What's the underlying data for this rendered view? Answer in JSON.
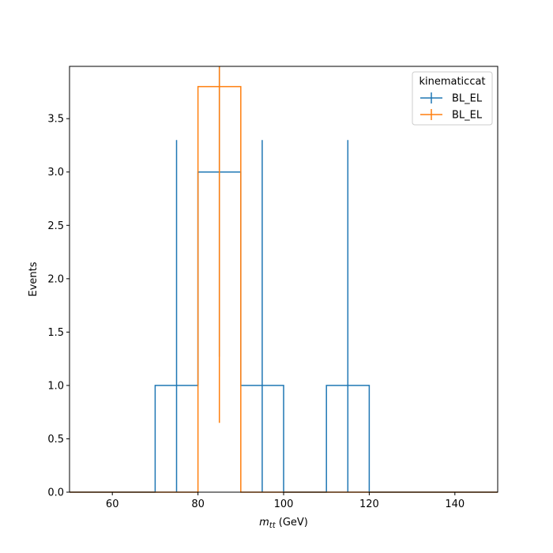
{
  "chart_data": {
    "type": "histogram",
    "title": "",
    "xlabel": "m",
    "xlabel_subscript": "tt",
    "xlabel_unit": " (GeV)",
    "ylabel": "Events",
    "xlim": [
      50,
      150
    ],
    "ylim": [
      0,
      3.99
    ],
    "xticks": [
      60,
      80,
      100,
      120,
      140
    ],
    "xtick_labels": [
      "60",
      "80",
      "100",
      "120",
      "140"
    ],
    "yticks": [
      0,
      0.5,
      1.0,
      1.5,
      2.0,
      2.5,
      3.0,
      3.5
    ],
    "ytick_labels": [
      "0.0",
      "0.5",
      "1.0",
      "1.5",
      "2.0",
      "2.5",
      "3.0",
      "3.5"
    ],
    "bin_edges": [
      50,
      60,
      70,
      80,
      90,
      100,
      110,
      120,
      130,
      140,
      150
    ],
    "series": [
      {
        "name": "BL_EL",
        "color": "#1f77b4",
        "values": [
          0,
          0,
          1,
          3,
          1,
          0,
          1,
          0,
          0,
          0
        ],
        "errors": [
          0,
          0,
          2.3,
          1.73,
          2.3,
          0,
          2.3,
          0,
          0,
          0
        ]
      },
      {
        "name": "BL_EL",
        "color": "#ff7f0e",
        "values": [
          0,
          0,
          0,
          3.8,
          0,
          0,
          0,
          0,
          0,
          0
        ],
        "errors": [
          0,
          0,
          0,
          3.15,
          0,
          0,
          0,
          0,
          0,
          0
        ]
      }
    ],
    "legend": {
      "title": "kinematiccat",
      "placement": "top-right"
    },
    "grid": false
  }
}
